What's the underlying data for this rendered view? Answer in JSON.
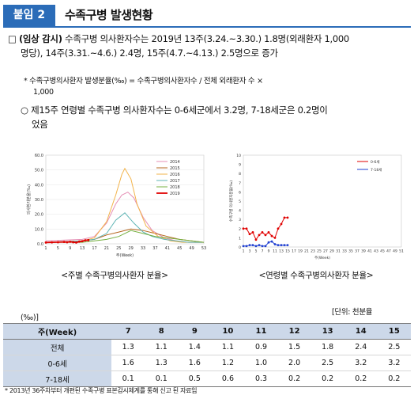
{
  "header": {
    "badge": "붙임 2",
    "title": "수족구병 발생현황"
  },
  "bullet1": {
    "marker": "□",
    "lead": "(임상 감시)",
    "text1": " 수족구병 의사환자수는 2019년 13주(3.24.~3.30.) 1.8명(외래환자 1,000",
    "text2": "명당), 14주(3.31.~4.6.) 2.4명, 15주(4.7.~4.13.) 2.5명으로 증가"
  },
  "note1": {
    "line1": "*  수족구병의사환자 발생분율(‰) = 수족구병의사환자수 / 전체 외래환자 수 ×",
    "line2": "1,000"
  },
  "bullet2": {
    "marker": "○",
    "line1": "제15주 연령별 수족구병 의사환자수는 0-6세군에서 3.2명, 7-18세군은 0.2명이",
    "line2": "었음"
  },
  "captions": {
    "left": "<주별 수족구병의사환자 분율>",
    "right": "<연령별 수족구병의사환자 분율>"
  },
  "table": {
    "unit_label": "[단위:   천분율",
    "unit_suffix": "(‰)]",
    "columns": [
      "주(Week)",
      "7",
      "8",
      "9",
      "10",
      "11",
      "12",
      "13",
      "14",
      "15"
    ],
    "rows": [
      [
        "전체",
        "1.3",
        "1.1",
        "1.4",
        "1.1",
        "0.9",
        "1.5",
        "1.8",
        "2.4",
        "2.5"
      ],
      [
        "0-6세",
        "1.6",
        "1.3",
        "1.6",
        "1.2",
        "1.0",
        "2.0",
        "2.5",
        "3.2",
        "3.2"
      ],
      [
        "7-18세",
        "0.1",
        "0.1",
        "0.5",
        "0.6",
        "0.3",
        "0.2",
        "0.2",
        "0.2",
        "0.2"
      ]
    ],
    "footnote": "* 2013년 36주차부터 개편된 수족구병 표본감시체계를 통해 신고 된 자료임"
  },
  "chart_data": [
    {
      "type": "line",
      "ylabel": "의사환자분율(‰)",
      "xlabel": "주(Week)",
      "ylim": [
        0,
        60
      ],
      "yticks": [
        "0.0",
        "10.0",
        "20.0",
        "30.0",
        "40.0",
        "50.0",
        "60.0"
      ],
      "xticks": [
        "1",
        "5",
        "9",
        "13",
        "17",
        "21",
        "25",
        "29",
        "33",
        "37",
        "41",
        "45",
        "49",
        "53"
      ],
      "legend_position": "top-right",
      "colors": [
        "#e58fb5",
        "#b5651d",
        "#f2b34a",
        "#5fb5b5",
        "#76b041",
        "#e00000"
      ],
      "series": [
        {
          "name": "2014",
          "x": [
            1,
            13,
            17,
            21,
            24,
            26,
            28,
            30,
            33,
            36,
            40,
            44,
            48,
            53
          ],
          "values": [
            2,
            3,
            5,
            14,
            27,
            33,
            35,
            31,
            18,
            9,
            4,
            2,
            1,
            1
          ]
        },
        {
          "name": "2015",
          "x": [
            1,
            13,
            17,
            21,
            25,
            29,
            33,
            37,
            41,
            45,
            49,
            53
          ],
          "values": [
            1,
            2,
            3,
            6,
            8,
            10,
            9,
            7,
            5,
            3,
            2,
            1
          ]
        },
        {
          "name": "2016",
          "x": [
            1,
            13,
            17,
            21,
            24,
            26,
            27,
            29,
            31,
            34,
            38,
            42,
            46,
            53
          ],
          "values": [
            1,
            2,
            4,
            15,
            33,
            47,
            51,
            44,
            27,
            12,
            5,
            2,
            1,
            1
          ]
        },
        {
          "name": "2017",
          "x": [
            1,
            13,
            17,
            21,
            24,
            27,
            30,
            33,
            36,
            40,
            44,
            48,
            53
          ],
          "values": [
            1,
            2,
            3,
            7,
            16,
            21,
            14,
            8,
            5,
            3,
            2,
            1,
            1
          ]
        },
        {
          "name": "2018",
          "x": [
            1,
            13,
            17,
            21,
            25,
            29,
            33,
            37,
            41,
            45,
            49,
            53
          ],
          "values": [
            1,
            1,
            2,
            3,
            5,
            9,
            7,
            5,
            4,
            3,
            2,
            1
          ]
        },
        {
          "name": "2019",
          "x": [
            1,
            3,
            5,
            7,
            8,
            9,
            10,
            11,
            12,
            13,
            14,
            15
          ],
          "values": [
            0.9,
            1.0,
            1.1,
            1.3,
            1.1,
            1.4,
            1.1,
            0.9,
            1.5,
            1.8,
            2.4,
            2.5
          ]
        }
      ]
    },
    {
      "type": "line",
      "ylabel": "수족구병 의사환자분율(‰)",
      "xlabel": "주(Week)",
      "ylim": [
        0,
        10
      ],
      "yticks": [
        "0",
        "1",
        "2",
        "3",
        "4",
        "5",
        "6",
        "7",
        "8",
        "9",
        "10"
      ],
      "xticks": [
        "1",
        "3",
        "5",
        "7",
        "9",
        "11",
        "13",
        "15",
        "17",
        "19",
        "21",
        "23",
        "25",
        "27",
        "29",
        "31",
        "33",
        "35",
        "37",
        "39",
        "41",
        "43",
        "45",
        "47",
        "49",
        "51"
      ],
      "legend_position": "top-right",
      "colors": [
        "#e00000",
        "#1f3fd1"
      ],
      "series": [
        {
          "name": "0-6세",
          "x": [
            1,
            2,
            3,
            4,
            5,
            6,
            7,
            8,
            9,
            10,
            11,
            12,
            13,
            14,
            15
          ],
          "values": [
            2.0,
            2.0,
            1.4,
            1.6,
            0.8,
            1.3,
            1.6,
            1.3,
            1.6,
            1.2,
            1.0,
            2.0,
            2.5,
            3.2,
            3.2
          ]
        },
        {
          "name": "7-18세",
          "x": [
            1,
            2,
            3,
            4,
            5,
            6,
            7,
            8,
            9,
            10,
            11,
            12,
            13,
            14,
            15
          ],
          "values": [
            0.1,
            0.1,
            0.2,
            0.2,
            0.1,
            0.2,
            0.1,
            0.1,
            0.5,
            0.6,
            0.3,
            0.2,
            0.2,
            0.2,
            0.2
          ]
        }
      ]
    }
  ]
}
